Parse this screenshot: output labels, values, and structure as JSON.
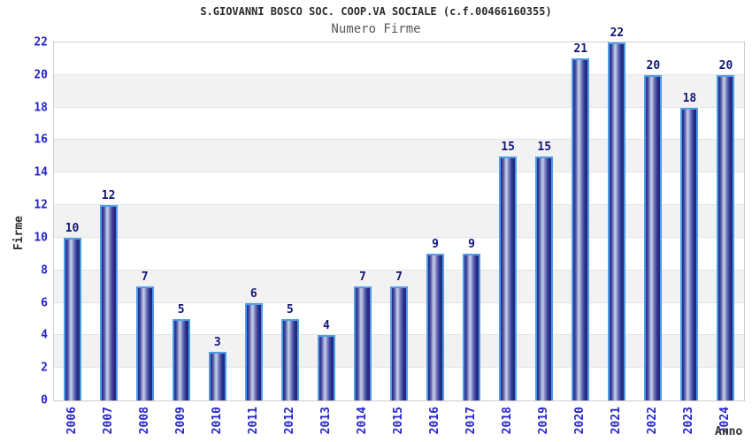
{
  "chart_data": {
    "type": "bar",
    "title": "S.GIOVANNI BOSCO SOC. COOP.VA SOCIALE (c.f.00466160355)",
    "subtitle": "Numero Firme",
    "xlabel": "Anno",
    "ylabel": "Firme",
    "categories": [
      "2006",
      "2007",
      "2008",
      "2009",
      "2010",
      "2011",
      "2012",
      "2013",
      "2014",
      "2015",
      "2016",
      "2017",
      "2018",
      "2019",
      "2020",
      "2021",
      "2022",
      "2023",
      "2024"
    ],
    "values": [
      10,
      12,
      7,
      5,
      3,
      6,
      5,
      4,
      7,
      7,
      9,
      9,
      15,
      15,
      21,
      22,
      20,
      18,
      20
    ],
    "ylim": [
      0,
      22
    ],
    "ytick_step": 2,
    "yticks": [
      0,
      2,
      4,
      6,
      8,
      10,
      12,
      14,
      16,
      18,
      20,
      22
    ],
    "legend": null,
    "grid": "alternating-horizontal-bands",
    "colors": {
      "bar_dark": "#1f2478",
      "bar_highlight": "#c9cfe9",
      "bar_border": "#4f9de8",
      "tick_label_blue": "#2424cb",
      "value_label_navy": "#101677",
      "band_gray": "#f2f2f2",
      "grid_line": "#e4e4e4",
      "plot_border": "#cfcfcf",
      "title_color": "#2b2b2b",
      "subtitle_color": "#575757"
    }
  }
}
